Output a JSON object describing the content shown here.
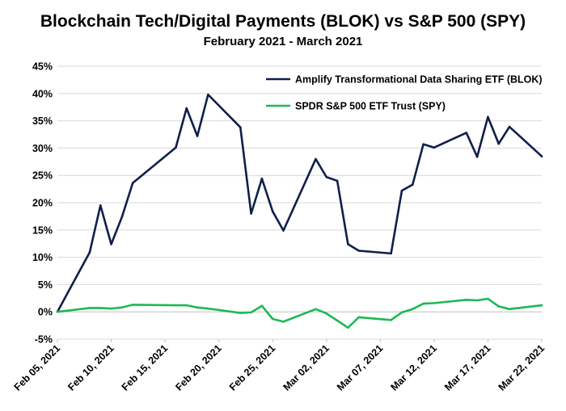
{
  "chart_data": {
    "type": "line",
    "title": "Blockchain Tech/Digital Payments (BLOK) vs S&P 500 (SPY)",
    "subtitle": "February 2021 - March 2021",
    "xlabel": "",
    "ylabel": "",
    "ylim": [
      -5,
      45
    ],
    "yticks": [
      -5,
      0,
      5,
      10,
      15,
      20,
      25,
      30,
      35,
      40,
      45
    ],
    "ytick_labels": [
      "-5%",
      "0%",
      "5%",
      "10%",
      "15%",
      "20%",
      "25%",
      "30%",
      "35%",
      "40%",
      "45%"
    ],
    "xlim": [
      "2021-02-05",
      "2021-03-22"
    ],
    "xticks": [
      "2021-02-05",
      "2021-02-10",
      "2021-02-15",
      "2021-02-20",
      "2021-02-25",
      "2021-03-02",
      "2021-03-07",
      "2021-03-12",
      "2021-03-17",
      "2021-03-22"
    ],
    "xtick_labels": [
      "Feb 05, 2021",
      "Feb 10, 2021",
      "Feb 15, 2021",
      "Feb 20, 2021",
      "Feb 25, 2021",
      "Mar 02, 2021",
      "Mar 07, 2021",
      "Mar 12, 2021",
      "Mar 17, 2021",
      "Mar 22, 2021"
    ],
    "grid": true,
    "legend_position": "top-right",
    "series": [
      {
        "name": "Amplify Transformational Data Sharing ETF (BLOK)",
        "color": "#0f1f4b",
        "points": [
          [
            "2021-02-05",
            0.0
          ],
          [
            "2021-02-08",
            10.9
          ],
          [
            "2021-02-09",
            19.5
          ],
          [
            "2021-02-10",
            12.4
          ],
          [
            "2021-02-11",
            17.4
          ],
          [
            "2021-02-12",
            23.6
          ],
          [
            "2021-02-16",
            30.1
          ],
          [
            "2021-02-17",
            37.3
          ],
          [
            "2021-02-18",
            32.2
          ],
          [
            "2021-02-19",
            39.8
          ],
          [
            "2021-02-22",
            33.8
          ],
          [
            "2021-02-23",
            18.0
          ],
          [
            "2021-02-24",
            24.4
          ],
          [
            "2021-02-25",
            18.4
          ],
          [
            "2021-02-26",
            14.9
          ],
          [
            "2021-03-01",
            28.0
          ],
          [
            "2021-03-02",
            24.7
          ],
          [
            "2021-03-03",
            24.0
          ],
          [
            "2021-03-04",
            12.4
          ],
          [
            "2021-03-05",
            11.2
          ],
          [
            "2021-03-08",
            10.7
          ],
          [
            "2021-03-09",
            22.2
          ],
          [
            "2021-03-10",
            23.3
          ],
          [
            "2021-03-11",
            30.7
          ],
          [
            "2021-03-12",
            30.1
          ],
          [
            "2021-03-15",
            32.8
          ],
          [
            "2021-03-16",
            28.4
          ],
          [
            "2021-03-17",
            35.7
          ],
          [
            "2021-03-18",
            30.8
          ],
          [
            "2021-03-19",
            33.9
          ],
          [
            "2021-03-22",
            28.5
          ]
        ]
      },
      {
        "name": "SPDR S&P 500 ETF Trust (SPY)",
        "color": "#1db954",
        "points": [
          [
            "2021-02-05",
            0.0
          ],
          [
            "2021-02-08",
            0.7
          ],
          [
            "2021-02-09",
            0.7
          ],
          [
            "2021-02-10",
            0.6
          ],
          [
            "2021-02-11",
            0.8
          ],
          [
            "2021-02-12",
            1.3
          ],
          [
            "2021-02-16",
            1.2
          ],
          [
            "2021-02-17",
            1.2
          ],
          [
            "2021-02-18",
            0.8
          ],
          [
            "2021-02-19",
            0.6
          ],
          [
            "2021-02-22",
            -0.2
          ],
          [
            "2021-02-23",
            -0.1
          ],
          [
            "2021-02-24",
            1.1
          ],
          [
            "2021-02-25",
            -1.3
          ],
          [
            "2021-02-26",
            -1.8
          ],
          [
            "2021-03-01",
            0.5
          ],
          [
            "2021-03-02",
            -0.3
          ],
          [
            "2021-03-03",
            -1.6
          ],
          [
            "2021-03-04",
            -2.9
          ],
          [
            "2021-03-05",
            -1.0
          ],
          [
            "2021-03-08",
            -1.5
          ],
          [
            "2021-03-09",
            -0.1
          ],
          [
            "2021-03-10",
            0.5
          ],
          [
            "2021-03-11",
            1.5
          ],
          [
            "2021-03-12",
            1.6
          ],
          [
            "2021-03-15",
            2.2
          ],
          [
            "2021-03-16",
            2.1
          ],
          [
            "2021-03-17",
            2.4
          ],
          [
            "2021-03-18",
            1.0
          ],
          [
            "2021-03-19",
            0.5
          ],
          [
            "2021-03-22",
            1.2
          ]
        ]
      }
    ]
  }
}
